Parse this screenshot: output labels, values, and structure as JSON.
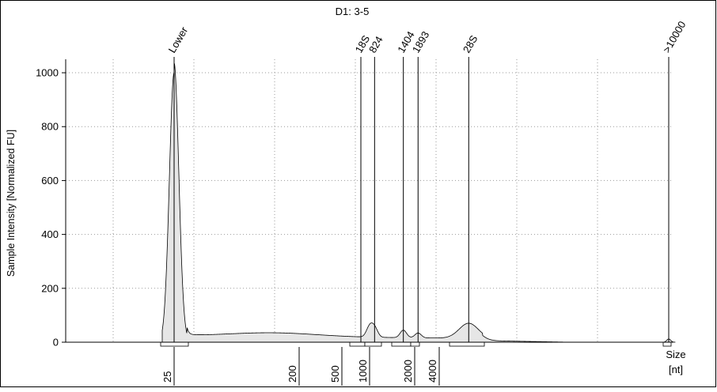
{
  "chart_data": {
    "type": "area",
    "title": "D1: 3-5",
    "ylabel": "Sample Intensity [Normalized FU]",
    "xlabel": "Size",
    "xunit": "[nt]",
    "ylim": [
      0,
      1050
    ],
    "yticks": [
      0,
      200,
      400,
      600,
      800,
      1000
    ],
    "x_axis_scale": "log",
    "xticks": [
      {
        "label": "25",
        "size": 25
      },
      {
        "label": "200",
        "size": 200
      },
      {
        "label": "500",
        "size": 500
      },
      {
        "label": "1000",
        "size": 1000
      },
      {
        "label": "2000",
        "size": 2000
      },
      {
        "label": "4000",
        "size": 4000
      }
    ],
    "peak_markers": [
      {
        "label": "Lower",
        "size": 25
      },
      {
        "label": "18S",
        "size": 1000
      },
      {
        "label": "824",
        "size": 1080
      },
      {
        "label": "1404",
        "size": 1680
      },
      {
        "label": "1893",
        "size": 2200
      },
      {
        "label": "28S",
        "size": 4500
      },
      {
        "label": ">10000",
        "size": 10000
      }
    ],
    "fill_color": "#e6e6e6",
    "line_color": "#000000",
    "grid": true
  }
}
